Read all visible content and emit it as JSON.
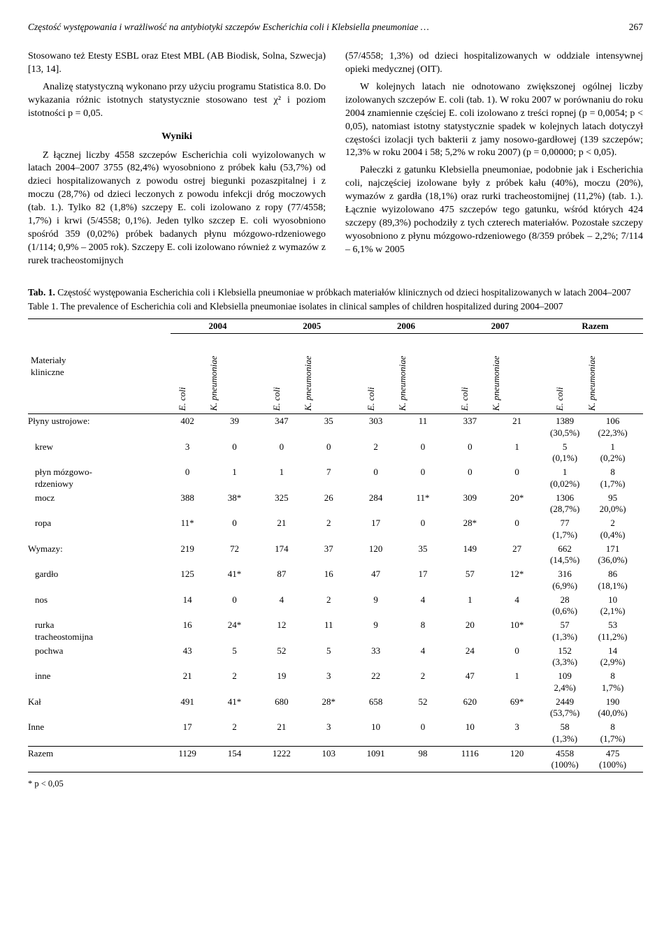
{
  "running_head": {
    "title": "Częstość występowania i wrażliwość na antybiotyki szczepów Escherichia coli i Klebsiella pneumoniae …",
    "page": "267"
  },
  "left_col": {
    "p1": "Stosowano też Etesty ESBL oraz Etest MBL (AB Biodisk, Solna, Szwecja) [13, 14].",
    "p2": "Analizę statystyczną wykonano przy użyciu programu Statistica 8.0. Do wykazania różnic istotnych statystycznie stosowano test χ² i poziom istotności p = 0,05.",
    "wyniki": "Wyniki",
    "p3": "Z łącznej liczby 4558 szczepów Escherichia coli wyizolowanych w latach 2004–2007 3755 (82,4%) wyosobniono z próbek kału (53,7%) od dzieci hospitalizowanych z powodu ostrej biegunki pozaszpitalnej i z moczu (28,7%) od dzieci leczonych z powodu infekcji dróg moczowych (tab. 1.). Tylko 82 (1,8%) szczepy E. coli izolowano z ropy (77/4558; 1,7%) i krwi (5/4558; 0,1%). Jeden tylko szczep E. coli wyosobniono spośród 359 (0,02%) próbek badanych płynu mózgowo-rdzeniowego (1/114; 0,9% – 2005 rok). Szczepy E. coli izolowano również z wymazów z rurek tracheostomijnych"
  },
  "right_col": {
    "p1": "(57/4558; 1,3%) od dzieci hospitalizowanych w oddziale intensywnej opieki medycznej (OIT).",
    "p2": "W kolejnych latach nie odnotowano zwiększonej ogólnej liczby izolowanych szczepów E. coli (tab. 1). W roku 2007 w porównaniu do roku 2004 znamiennie częściej E. coli izolowano z treści ropnej (p = 0,0054; p < 0,05), natomiast istotny statystycznie spadek w kolejnych latach dotyczył częstości izolacji tych bakterii z jamy nosowo-gardłowej (139 szczepów; 12,3% w roku 2004 i 58; 5,2% w roku 2007) (p = 0,00000; p < 0,05).",
    "p3": "Pałeczki z gatunku Klebsiella pneumoniae, podobnie jak i Escherichia coli, najczęściej izolowane były z próbek kału (40%), moczu (20%), wymazów z gardła (18,1%) oraz rurki tracheostomijnej (11,2%) (tab. 1.). Łącznie wyizolowano 475 szczepów tego gatunku, wśród których 424 szczepy (89,3%) pochodziły z tych czterech materiałów. Pozostałe szczepy wyosobniono z płynu mózgowo-rdzeniowego (8/359 próbek – 2,2%; 7/114 – 6,1% w 2005"
  },
  "table": {
    "caption_bold": "Tab. 1.",
    "caption_pl": " Częstość występowania Escherichia coli i Klebsiella pneumoniae w próbkach materiałów klinicznych od dzieci hospitalizowanych w latach 2004–2007",
    "caption_en": "Table 1. The prevalence of Escherichia coli and Klebsiella pneumoniae isolates in clinical samples of children hospitalized during 2004–2007",
    "material_label": "Materiały\nkliniczne",
    "years": [
      "2004",
      "2005",
      "2006",
      "2007",
      "Razem"
    ],
    "species": [
      "E. coli",
      "K. pneumoniae"
    ],
    "rows": [
      {
        "label": "Płyny ustrojowe:",
        "top": true,
        "vals": [
          "402",
          "39",
          "347",
          "35",
          "303",
          "11",
          "337",
          "21",
          "1389\n(30,5%)",
          "106\n(22,3%)"
        ]
      },
      {
        "label": "krew",
        "vals": [
          "3",
          "0",
          "0",
          "0",
          "2",
          "0",
          "0",
          "1",
          "5\n(0,1%)",
          "1\n(0,2%)"
        ]
      },
      {
        "label": "płyn mózgowo-\nrdzeniowy",
        "vals": [
          "0",
          "1",
          "1",
          "7",
          "0",
          "0",
          "0",
          "0",
          "1\n(0,02%)",
          "8\n(1,7%)"
        ]
      },
      {
        "label": "mocz",
        "vals": [
          "388",
          "38*",
          "325",
          "26",
          "284",
          "11*",
          "309",
          "20*",
          "1306\n(28,7%)",
          "95\n20,0%)"
        ]
      },
      {
        "label": "ropa",
        "vals": [
          "11*",
          "0",
          "21",
          "2",
          "17",
          "0",
          "28*",
          "0",
          "77\n(1,7%)",
          "2\n(0,4%)"
        ]
      },
      {
        "label": "Wymazy:",
        "top": true,
        "vals": [
          "219",
          "72",
          "174",
          "37",
          "120",
          "35",
          "149",
          "27",
          "662\n(14,5%)",
          "171\n(36,0%)"
        ]
      },
      {
        "label": "gardło",
        "vals": [
          "125",
          "41*",
          "87",
          "16",
          "47",
          "17",
          "57",
          "12*",
          "316\n(6,9%)",
          "86\n(18,1%)"
        ]
      },
      {
        "label": "nos",
        "vals": [
          "14",
          "0",
          "4",
          "2",
          "9",
          "4",
          "1",
          "4",
          "28\n(0,6%)",
          "10\n(2,1%)"
        ]
      },
      {
        "label": "rurka\ntracheostomijna",
        "vals": [
          "16",
          "24*",
          "12",
          "11",
          "9",
          "8",
          "20",
          "10*",
          "57\n(1,3%)",
          "53\n(11,2%)"
        ]
      },
      {
        "label": "pochwa",
        "vals": [
          "43",
          "5",
          "52",
          "5",
          "33",
          "4",
          "24",
          "0",
          "152\n(3,3%)",
          "14\n(2,9%)"
        ]
      },
      {
        "label": "inne",
        "vals": [
          "21",
          "2",
          "19",
          "3",
          "22",
          "2",
          "47",
          "1",
          "109\n2,4%)",
          "8\n1,7%)"
        ]
      },
      {
        "label": "Kał",
        "top": true,
        "vals": [
          "491",
          "41*",
          "680",
          "28*",
          "658",
          "52",
          "620",
          "69*",
          "2449\n(53,7%)",
          "190\n(40,0%)"
        ]
      },
      {
        "label": "Inne",
        "top": true,
        "vals": [
          "17",
          "2",
          "21",
          "3",
          "10",
          "0",
          "10",
          "3",
          "58\n(1,3%)",
          "8\n(1,7%)"
        ]
      },
      {
        "label": "Razem",
        "top": true,
        "sum": true,
        "vals": [
          "1129",
          "154",
          "1222",
          "103",
          "1091",
          "98",
          "1116",
          "120",
          "4558\n(100%)",
          "475\n(100%)"
        ]
      }
    ],
    "footnote": "* p < 0,05"
  }
}
